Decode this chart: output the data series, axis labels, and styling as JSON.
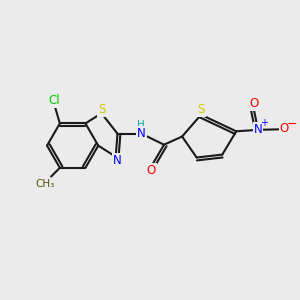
{
  "background_color": "#ebebeb",
  "bond_color": "#1a1a1a",
  "atom_colors": {
    "S": "#cccc00",
    "N": "#0000ff",
    "O": "#ff0000",
    "Cl": "#00cc00",
    "H": "#00aaaa"
  },
  "figsize": [
    3.0,
    3.0
  ],
  "dpi": 100
}
